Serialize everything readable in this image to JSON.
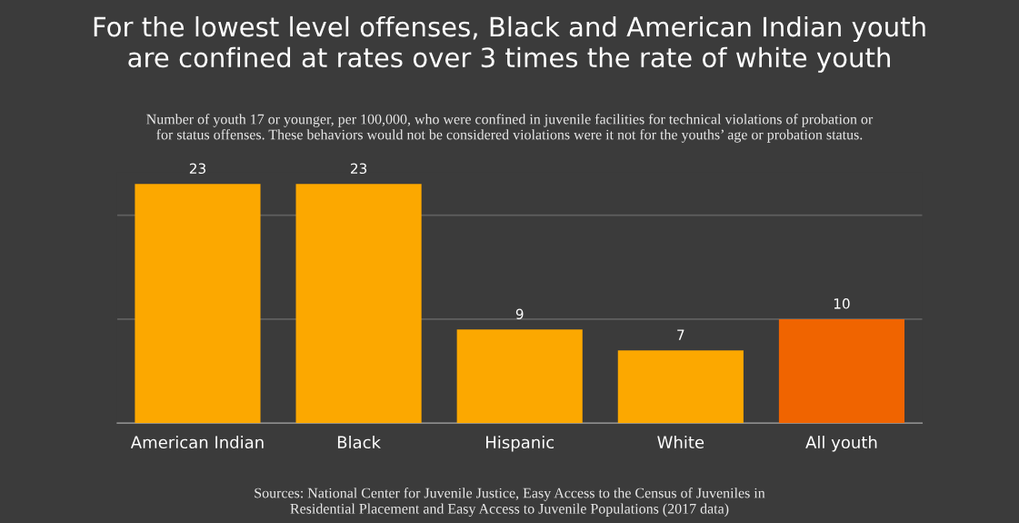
{
  "chart_data": {
    "type": "bar",
    "title": "For the lowest level offenses, Black and American Indian youth\nare confined at rates over 3 times the rate of white youth",
    "subtitle": "Number of youth 17 or younger, per 100,000, who were confined in juvenile facilities for technical violations of probation or\nfor status offenses. These behaviors would not be considered violations were it not for the youths’ age or probation status.",
    "categories": [
      "American Indian",
      "Black",
      "Hispanic",
      "White",
      "All youth"
    ],
    "values": [
      23,
      23,
      9,
      7,
      10
    ],
    "colors": [
      "#fca800",
      "#fca800",
      "#fca800",
      "#fca800",
      "#f06400"
    ],
    "data_labels": true,
    "ref_lines": [
      {
        "axis": "y",
        "value": 10,
        "color": "#606060"
      },
      {
        "axis": "y",
        "value": 20,
        "color": "#606060"
      }
    ],
    "tick_labels": "x",
    "annotations": [
      "Sources: National Center for Juvenile Justice, Easy Access to the Census of Juveniles in\nResidential Placement and Easy Access to Juvenile Populations (2017 data)"
    ]
  }
}
